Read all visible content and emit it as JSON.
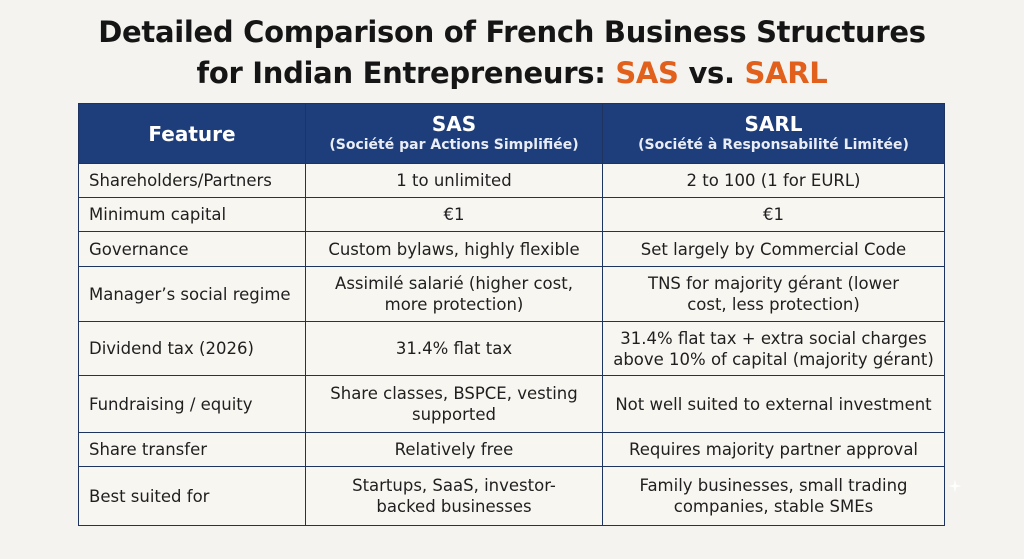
{
  "title": {
    "line1": "Detailed Comparison of French Business Structures",
    "line2_prefix": "for Indian Entrepreneurs: ",
    "accent_sas": "SAS",
    "separator": " vs. ",
    "accent_sarl": "SARL"
  },
  "colors": {
    "header_bg": "#1e3d7b",
    "accent": "#e0601c",
    "page_bg": "#f4f3ef"
  },
  "table": {
    "headers": {
      "feature": "Feature",
      "sas": "SAS",
      "sas_full": "(Société par Actions Simplifiée)",
      "sarl": "SARL",
      "sarl_full": "(Société à Responsabilité Limitée)"
    },
    "rows": [
      {
        "feature": "Shareholders/Partners",
        "sas": "1 to unlimited",
        "sarl": "2 to 100 (1 for EURL)"
      },
      {
        "feature": "Minimum capital",
        "sas": "€1",
        "sarl": "€1"
      },
      {
        "feature": "Governance",
        "sas": "Custom bylaws, highly flexible",
        "sarl": "Set largely by Commercial Code"
      },
      {
        "feature": "Manager’s social regime",
        "sas_l1": "Assimilé salarié (higher cost,",
        "sas_l2": "more protection)",
        "sarl_l1": "TNS for majority gérant (lower",
        "sarl_l2": "cost, less protection)"
      },
      {
        "feature": "Dividend tax (2026)",
        "sas": "31.4% flat tax",
        "sarl_l1": "31.4% flat tax + extra social charges",
        "sarl_l2": "above 10% of capital (majority gérant)"
      },
      {
        "feature": "Fundraising / equity",
        "sas_l1": "Share classes, BSPCE, vesting",
        "sas_l2": "supported",
        "sarl": "Not well suited to external investment"
      },
      {
        "feature": "Share transfer",
        "sas": "Relatively free",
        "sarl": "Requires majority partner approval"
      },
      {
        "feature": "Best suited for",
        "sas_l1": "Startups, SaaS, investor-",
        "sas_l2": "backed businesses",
        "sarl_l1": "Family businesses, small trading",
        "sarl_l2": "companies, stable SMEs"
      }
    ]
  }
}
